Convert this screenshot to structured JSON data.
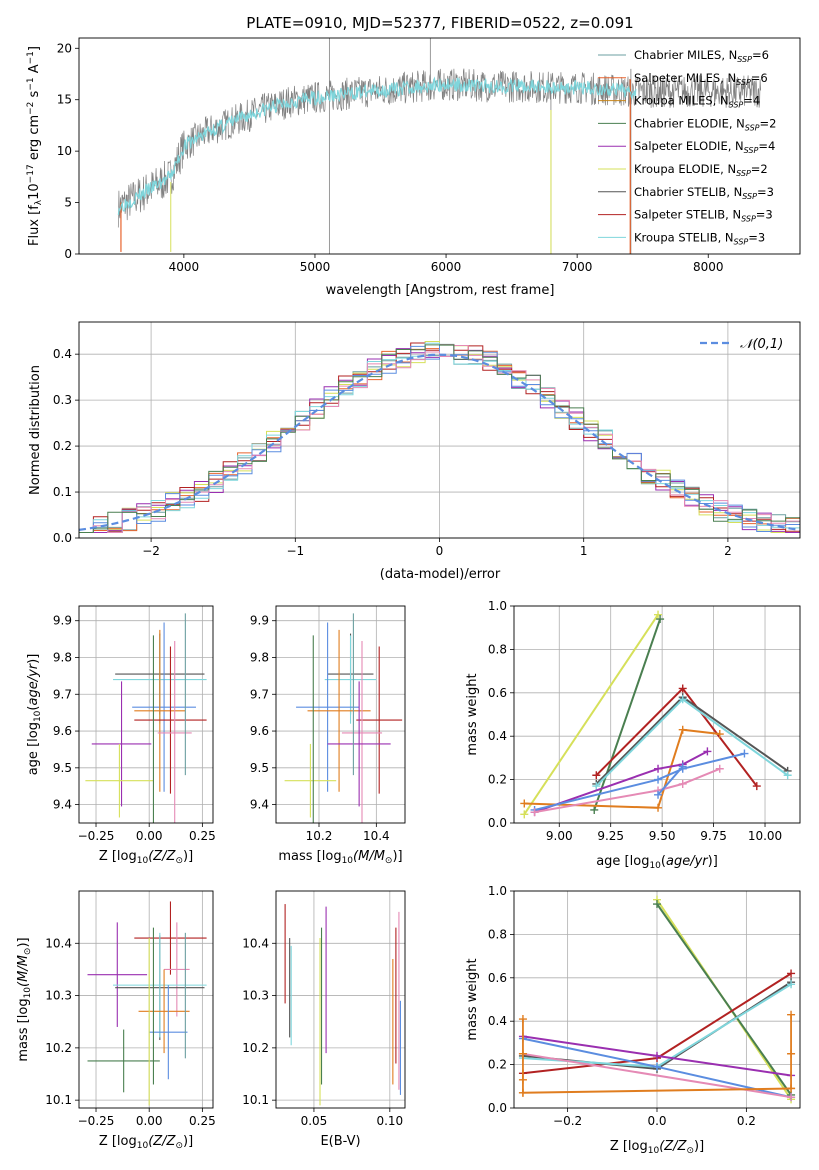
{
  "colors": {
    "chabrier_miles": "#6b9fa0",
    "salpeter_miles": "#e8642e",
    "kroupa_miles": "#c8861a",
    "chabrier_elodie": "#4a7f50",
    "salpeter_elodie": "#9a2fb0",
    "kroupa_elodie": "#d6e05a",
    "chabrier_stelib": "#555555",
    "salpeter_stelib": "#b22222",
    "kroupa_stelib": "#7fd6dc",
    "blue": "#5b8de0",
    "orange": "#e07d1f",
    "pink": "#e58ab5",
    "green": "#6aa84f",
    "gray_data": "#808080",
    "normal_line": "#5b8de0"
  },
  "chart_data": [
    {
      "id": "spectrum",
      "type": "line",
      "title": "PLATE=0910, MJD=52377, FIBERID=0522, z=0.091",
      "xlabel": "wavelength [Angstrom, rest frame]",
      "ylabel_parts": [
        "Flux [f",
        "λ",
        "10",
        "−17",
        " erg cm",
        "−2",
        " s",
        "−1",
        " A",
        "−1",
        "]"
      ],
      "xlim": [
        3200,
        8700
      ],
      "ylim": [
        0,
        21
      ],
      "xticks": [
        4000,
        5000,
        6000,
        7000,
        8000
      ],
      "yticks": [
        0,
        5,
        10,
        15,
        20
      ],
      "xtick_labels": [
        "4000",
        "5000",
        "6000",
        "7000",
        "8000"
      ],
      "ytick_labels": [
        "0",
        "5",
        "10",
        "15",
        "20"
      ],
      "continuum": [
        [
          3500,
          4.5
        ],
        [
          3700,
          6.0
        ],
        [
          3900,
          7.5
        ],
        [
          4000,
          10.5
        ],
        [
          4200,
          12.0
        ],
        [
          4400,
          13.0
        ],
        [
          4600,
          14.0
        ],
        [
          4800,
          14.8
        ],
        [
          5000,
          15.2
        ],
        [
          5200,
          15.5
        ],
        [
          5400,
          15.8
        ],
        [
          5600,
          16.0
        ],
        [
          5800,
          16.3
        ],
        [
          6000,
          16.5
        ],
        [
          6200,
          16.4
        ],
        [
          6400,
          16.3
        ],
        [
          6600,
          16.3
        ],
        [
          6800,
          16.2
        ],
        [
          7000,
          16.2
        ],
        [
          7200,
          16.0
        ],
        [
          7400,
          15.8
        ]
      ],
      "data_range": [
        3500,
        8400
      ],
      "legend": [
        {
          "label": "Chabrier MILES, N",
          "sub": "SSP",
          "tail": "=6",
          "color": "chabrier_miles"
        },
        {
          "label": "Salpeter MILES, N",
          "sub": "SSP",
          "tail": "=6",
          "color": "salpeter_miles"
        },
        {
          "label": "Kroupa MILES, N",
          "sub": "SSP",
          "tail": "=4",
          "color": "kroupa_miles"
        },
        {
          "label": "Chabrier ELODIE, N",
          "sub": "SSP",
          "tail": "=2",
          "color": "chabrier_elodie"
        },
        {
          "label": "Salpeter ELODIE, N",
          "sub": "SSP",
          "tail": "=4",
          "color": "salpeter_elodie"
        },
        {
          "label": "Kroupa ELODIE, N",
          "sub": "SSP",
          "tail": "=2",
          "color": "kroupa_elodie"
        },
        {
          "label": "Chabrier STELIB, N",
          "sub": "SSP",
          "tail": "=3",
          "color": "chabrier_stelib"
        },
        {
          "label": "Salpeter STELIB, N",
          "sub": "SSP",
          "tail": "=3",
          "color": "salpeter_stelib"
        },
        {
          "label": "Kroupa STELIB, N",
          "sub": "SSP",
          "tail": "=3",
          "color": "kroupa_stelib"
        }
      ],
      "legend_position": "right"
    },
    {
      "id": "residuals",
      "type": "histogram",
      "xlabel": "(data-model)/error",
      "ylabel": "Normed distribution",
      "xlim": [
        -2.5,
        2.5
      ],
      "ylim": [
        0,
        0.47
      ],
      "xticks": [
        -2,
        -1,
        0,
        1,
        2
      ],
      "yticks": [
        0.0,
        0.1,
        0.2,
        0.3,
        0.4
      ],
      "xtick_labels": [
        "−2",
        "−1",
        "0",
        "1",
        "2"
      ],
      "ytick_labels": [
        "0.0",
        "0.1",
        "0.2",
        "0.3",
        "0.4"
      ],
      "bin_width": 0.1,
      "bin_start": -2.5,
      "normal_label": "𝒩(0,1)",
      "legend_position": "top-right",
      "series_colors": [
        "chabrier_miles",
        "salpeter_miles",
        "kroupa_elodie",
        "salpeter_elodie",
        "salpeter_stelib",
        "kroupa_stelib",
        "blue",
        "pink",
        "chabrier_elodie"
      ]
    },
    {
      "id": "age_vs_Z",
      "type": "errorbar",
      "xlabel_parts": [
        "Z [log",
        "10",
        "(Z/Z",
        "⊙",
        ")]"
      ],
      "ylabel_parts": [
        "age  [log",
        "10",
        "(",
        "age/yr",
        ")]"
      ],
      "xlim": [
        -0.33,
        0.3
      ],
      "ylim": [
        9.35,
        9.94
      ],
      "xticks": [
        -0.25,
        0.0,
        0.25
      ],
      "yticks": [
        9.4,
        9.5,
        9.6,
        9.7,
        9.8,
        9.9
      ],
      "xtick_labels": [
        "−0.25",
        "0.00",
        "0.25"
      ],
      "ytick_labels": [
        "9.4",
        "9.5",
        "9.6",
        "9.7",
        "9.8",
        "9.9"
      ],
      "points": [
        {
          "x": 0.05,
          "xerr": 0.21,
          "y": 9.755,
          "yerr": 0.11,
          "color": "chabrier_stelib"
        },
        {
          "x": 0.05,
          "xerr": 0.22,
          "y": 9.74,
          "yerr": 0.12,
          "color": "kroupa_stelib"
        },
        {
          "x": 0.07,
          "xerr": 0.15,
          "y": 9.665,
          "yerr": 0.23,
          "color": "blue"
        },
        {
          "x": 0.05,
          "xerr": 0.12,
          "y": 9.655,
          "yerr": 0.22,
          "color": "orange"
        },
        {
          "x": 0.1,
          "xerr": 0.17,
          "y": 9.63,
          "yerr": 0.2,
          "color": "salpeter_stelib"
        },
        {
          "x": 0.12,
          "xerr": 0.08,
          "y": 9.595,
          "yerr": 0.25,
          "color": "pink"
        },
        {
          "x": -0.13,
          "xerr": 0.14,
          "y": 9.565,
          "yerr": 0.17,
          "color": "salpeter_elodie"
        },
        {
          "x": -0.14,
          "xerr": 0.16,
          "y": 9.465,
          "yerr": 0.1,
          "color": "kroupa_elodie"
        },
        {
          "x": 0.02,
          "xerr": 0.0,
          "y": 9.6,
          "yerr": 0.26,
          "color": "chabrier_elodie"
        },
        {
          "x": 0.17,
          "xerr": 0.0,
          "y": 9.7,
          "yerr": 0.22,
          "color": "chabrier_miles"
        }
      ]
    },
    {
      "id": "age_vs_mass",
      "type": "errorbar",
      "xlabel_parts": [
        "mass [log",
        "10",
        "(M/M",
        "⊙",
        ")]"
      ],
      "xlim": [
        10.05,
        10.5
      ],
      "ylim": [
        9.35,
        9.94
      ],
      "xticks": [
        10.2,
        10.4
      ],
      "yticks": [
        9.4,
        9.5,
        9.6,
        9.7,
        9.8,
        9.9
      ],
      "xtick_labels": [
        "10.2",
        "10.4"
      ],
      "ytick_labels": [
        "9.4",
        "9.5",
        "9.6",
        "9.7",
        "9.8",
        "9.9"
      ],
      "points": [
        {
          "x": 10.31,
          "xerr": 0.08,
          "y": 9.755,
          "yerr": 0.11,
          "color": "chabrier_stelib"
        },
        {
          "x": 10.31,
          "xerr": 0.09,
          "y": 9.74,
          "yerr": 0.12,
          "color": "kroupa_stelib"
        },
        {
          "x": 10.23,
          "xerr": 0.11,
          "y": 9.665,
          "yerr": 0.23,
          "color": "blue"
        },
        {
          "x": 10.27,
          "xerr": 0.11,
          "y": 9.655,
          "yerr": 0.22,
          "color": "orange"
        },
        {
          "x": 10.41,
          "xerr": 0.08,
          "y": 9.63,
          "yerr": 0.2,
          "color": "salpeter_stelib"
        },
        {
          "x": 10.35,
          "xerr": 0.07,
          "y": 9.595,
          "yerr": 0.25,
          "color": "pink"
        },
        {
          "x": 10.34,
          "xerr": 0.11,
          "y": 9.565,
          "yerr": 0.17,
          "color": "salpeter_elodie"
        },
        {
          "x": 10.17,
          "xerr": 0.09,
          "y": 9.465,
          "yerr": 0.1,
          "color": "kroupa_elodie"
        },
        {
          "x": 10.18,
          "xerr": 0.0,
          "y": 9.6,
          "yerr": 0.26,
          "color": "chabrier_elodie"
        },
        {
          "x": 10.32,
          "xerr": 0.0,
          "y": 9.7,
          "yerr": 0.22,
          "color": "chabrier_miles"
        }
      ]
    },
    {
      "id": "weight_vs_age",
      "type": "line",
      "xlabel_parts": [
        "age  [log",
        "10",
        "(",
        "age/yr",
        ")]"
      ],
      "ylabel": "mass weight",
      "xlim": [
        8.78,
        10.17
      ],
      "ylim": [
        0,
        1
      ],
      "xticks": [
        9.0,
        9.25,
        9.5,
        9.75,
        10.0
      ],
      "yticks": [
        0.0,
        0.2,
        0.4,
        0.6,
        0.8,
        1.0
      ],
      "xtick_labels": [
        "9.00",
        "9.25",
        "9.50",
        "9.75",
        "10.00"
      ],
      "ytick_labels": [
        "0.0",
        "0.2",
        "0.4",
        "0.6",
        "0.8",
        "1.0"
      ],
      "series": [
        {
          "color": "kroupa_elodie",
          "x": [
            8.83,
            9.48
          ],
          "y": [
            0.04,
            0.96
          ]
        },
        {
          "color": "chabrier_elodie",
          "x": [
            9.17,
            9.49
          ],
          "y": [
            0.06,
            0.94
          ]
        },
        {
          "color": "salpeter_stelib",
          "x": [
            9.18,
            9.6,
            9.96
          ],
          "y": [
            0.22,
            0.62,
            0.17
          ]
        },
        {
          "color": "chabrier_stelib",
          "x": [
            9.18,
            9.6,
            10.11
          ],
          "y": [
            0.18,
            0.58,
            0.24
          ]
        },
        {
          "color": "kroupa_stelib",
          "x": [
            9.18,
            9.6,
            10.11
          ],
          "y": [
            0.17,
            0.57,
            0.22
          ]
        },
        {
          "color": "orange",
          "x": [
            8.83,
            9.48,
            9.6,
            9.78
          ],
          "y": [
            0.09,
            0.07,
            0.43,
            0.41
          ]
        },
        {
          "color": "salpeter_elodie",
          "x": [
            8.88,
            9.48,
            9.6,
            9.72
          ],
          "y": [
            0.05,
            0.25,
            0.27,
            0.33
          ]
        },
        {
          "color": "blue",
          "x": [
            8.88,
            9.48,
            9.6,
            9.9
          ],
          "y": [
            0.06,
            0.2,
            0.25,
            0.32
          ]
        },
        {
          "color": "pink",
          "x": [
            8.88,
            9.48,
            9.6,
            9.78
          ],
          "y": [
            0.05,
            0.15,
            0.18,
            0.25
          ]
        },
        {
          "color": "blue",
          "x": [
            9.48,
            9.6
          ],
          "y": [
            0.13,
            0.26
          ]
        }
      ]
    },
    {
      "id": "mass_vs_Z",
      "type": "errorbar",
      "xlabel_parts": [
        "Z [log",
        "10",
        "(Z/Z",
        "⊙",
        ")]"
      ],
      "ylabel_parts": [
        "mass [log",
        "10",
        "(M/M",
        "⊙",
        ")]"
      ],
      "xlim": [
        -0.33,
        0.3
      ],
      "ylim": [
        10.085,
        10.5
      ],
      "xticks": [
        -0.25,
        0.0,
        0.25
      ],
      "yticks": [
        10.1,
        10.2,
        10.3,
        10.4
      ],
      "xtick_labels": [
        "−0.25",
        "0.00",
        "0.25"
      ],
      "ytick_labels": [
        "10.1",
        "10.2",
        "10.3",
        "10.4"
      ],
      "points": [
        {
          "x": 0.1,
          "xerr": 0.17,
          "y": 10.41,
          "yerr": 0.07,
          "color": "salpeter_stelib"
        },
        {
          "x": -0.15,
          "xerr": 0.14,
          "y": 10.34,
          "yerr": 0.1,
          "color": "salpeter_elodie"
        },
        {
          "x": 0.13,
          "xerr": 0.06,
          "y": 10.35,
          "yerr": 0.09,
          "color": "pink"
        },
        {
          "x": 0.05,
          "xerr": 0.21,
          "y": 10.315,
          "yerr": 0.1,
          "color": "chabrier_stelib"
        },
        {
          "x": 0.05,
          "xerr": 0.22,
          "y": 10.32,
          "yerr": 0.1,
          "color": "kroupa_stelib"
        },
        {
          "x": 0.07,
          "xerr": 0.12,
          "y": 10.27,
          "yerr": 0.08,
          "color": "orange"
        },
        {
          "x": 0.09,
          "xerr": 0.09,
          "y": 10.23,
          "yerr": 0.09,
          "color": "blue"
        },
        {
          "x": -0.12,
          "xerr": 0.17,
          "y": 10.175,
          "yerr": 0.06,
          "color": "chabrier_elodie"
        },
        {
          "x": 0.02,
          "xerr": 0.0,
          "y": 10.28,
          "yerr": 0.15,
          "color": "chabrier_elodie"
        },
        {
          "x": 0.0,
          "xerr": 0.0,
          "y": 10.25,
          "yerr": 0.16,
          "color": "kroupa_elodie"
        },
        {
          "x": 0.17,
          "xerr": 0.0,
          "y": 10.3,
          "yerr": 0.12,
          "color": "chabrier_miles"
        }
      ]
    },
    {
      "id": "mass_vs_EBV",
      "type": "errorbar",
      "xlabel": "E(B-V)",
      "xlim": [
        0.025,
        0.11
      ],
      "ylim": [
        10.085,
        10.5
      ],
      "xticks": [
        0.05,
        0.1
      ],
      "yticks": [
        10.1,
        10.2,
        10.3,
        10.4
      ],
      "xtick_labels": [
        "0.05",
        "0.10"
      ],
      "ytick_labels": [
        "10.1",
        "10.2",
        "10.3",
        "10.4"
      ],
      "points": [
        {
          "x": 0.031,
          "xerr": 0.0,
          "y": 10.38,
          "yerr": 0.095,
          "color": "salpeter_stelib"
        },
        {
          "x": 0.034,
          "xerr": 0.0,
          "y": 10.315,
          "yerr": 0.095,
          "color": "chabrier_stelib"
        },
        {
          "x": 0.035,
          "xerr": 0.0,
          "y": 10.3,
          "yerr": 0.095,
          "color": "kroupa_stelib"
        },
        {
          "x": 0.054,
          "xerr": 0.0,
          "y": 10.25,
          "yerr": 0.16,
          "color": "kroupa_elodie"
        },
        {
          "x": 0.055,
          "xerr": 0.0,
          "y": 10.28,
          "yerr": 0.15,
          "color": "chabrier_elodie"
        },
        {
          "x": 0.058,
          "xerr": 0.0,
          "y": 10.33,
          "yerr": 0.14,
          "color": "salpeter_elodie"
        },
        {
          "x": 0.102,
          "xerr": 0.0,
          "y": 10.25,
          "yerr": 0.12,
          "color": "orange"
        },
        {
          "x": 0.104,
          "xerr": 0.0,
          "y": 10.3,
          "yerr": 0.13,
          "color": "salpeter_stelib"
        },
        {
          "x": 0.106,
          "xerr": 0.0,
          "y": 10.29,
          "yerr": 0.17,
          "color": "pink"
        },
        {
          "x": 0.107,
          "xerr": 0.0,
          "y": 10.2,
          "yerr": 0.09,
          "color": "blue"
        }
      ]
    },
    {
      "id": "weight_vs_Z",
      "type": "line",
      "xlabel_parts": [
        "Z [log",
        "10",
        "(Z/Z",
        "⊙",
        ")]"
      ],
      "ylabel": "mass weight",
      "xlim": [
        -0.32,
        0.32
      ],
      "ylim": [
        0,
        1
      ],
      "xticks": [
        -0.2,
        0.0,
        0.2
      ],
      "yticks": [
        0.0,
        0.2,
        0.4,
        0.6,
        0.8,
        1.0
      ],
      "xtick_labels": [
        "−0.2",
        "0.0",
        "0.2"
      ],
      "ytick_labels": [
        "0.0",
        "0.2",
        "0.4",
        "0.6",
        "0.8",
        "1.0"
      ],
      "series": [
        {
          "color": "kroupa_elodie",
          "x": [
            0.0,
            0.3
          ],
          "y": [
            0.96,
            0.04
          ]
        },
        {
          "color": "chabrier_elodie",
          "x": [
            0.0,
            0.3
          ],
          "y": [
            0.94,
            0.06
          ]
        },
        {
          "color": "salpeter_stelib",
          "x": [
            -0.3,
            0.0,
            0.3
          ],
          "y": [
            0.16,
            0.23,
            0.62
          ]
        },
        {
          "color": "chabrier_stelib",
          "x": [
            -0.3,
            0.0,
            0.3
          ],
          "y": [
            0.24,
            0.18,
            0.58
          ]
        },
        {
          "color": "kroupa_stelib",
          "x": [
            -0.3,
            0.0,
            0.3
          ],
          "y": [
            0.23,
            0.19,
            0.57
          ]
        },
        {
          "color": "salpeter_elodie",
          "x": [
            -0.3,
            0.0,
            0.3
          ],
          "y": [
            0.33,
            0.24,
            0.15
          ]
        },
        {
          "color": "blue",
          "x": [
            -0.3,
            0.0,
            0.3
          ],
          "y": [
            0.32,
            0.19,
            0.05
          ]
        },
        {
          "color": "pink",
          "x": [
            -0.3,
            0.3
          ],
          "y": [
            0.25,
            0.05
          ]
        },
        {
          "color": "orange",
          "x": [
            -0.3,
            0.3
          ],
          "y": [
            0.07,
            0.09
          ]
        }
      ],
      "edge_markers": [
        {
          "color": "orange",
          "x": -0.3,
          "y": [
            0.07,
            0.13,
            0.25,
            0.41
          ]
        },
        {
          "color": "orange",
          "x": 0.3,
          "y": [
            0.09,
            0.25,
            0.43
          ]
        }
      ]
    }
  ]
}
